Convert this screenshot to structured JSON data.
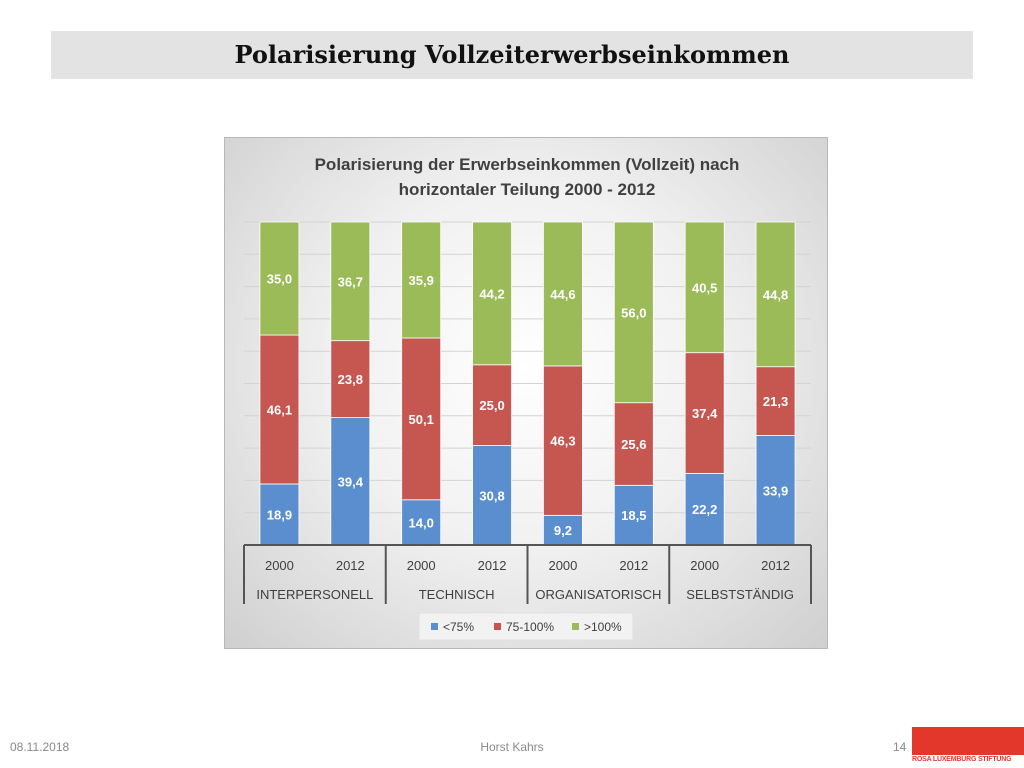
{
  "slide": {
    "title": "Polarisierung Vollzeiterwerbseinkommen",
    "footer_date": "08.11.2018",
    "footer_author": "Horst Kahrs",
    "page_number": "14",
    "logo_text": "ROSA LUXEMBURG STIFTUNG"
  },
  "chart_data": {
    "type": "bar",
    "stacked": true,
    "percent_stacked": true,
    "title": "Polarisierung der Erwerbseinkommen  (Vollzeit) nach horizontaler Teilung 2000 - 2012",
    "title_lines": [
      "Polarisierung der Erwerbseinkommen  (Vollzeit) nach",
      "horizontaler Teilung 2000 - 2012"
    ],
    "categories": [
      "2000",
      "2012",
      "2000",
      "2012",
      "2000",
      "2012",
      "2000",
      "2012"
    ],
    "groups": [
      "INTERPERSONELL",
      "TECHNISCH",
      "ORGANISATORISCH",
      "SELBSTSTÄNDIG"
    ],
    "series": [
      {
        "name": "<75%",
        "color": "#5b8ecf",
        "values": [
          18.9,
          39.4,
          14.0,
          30.8,
          9.2,
          18.5,
          22.2,
          33.9
        ],
        "labels": [
          "18,9",
          "39,4",
          "14,0",
          "30,8",
          "9,2",
          "18,5",
          "22,2",
          "33,9"
        ]
      },
      {
        "name": "75-100%",
        "color": "#c65650",
        "values": [
          46.1,
          23.8,
          50.1,
          25.0,
          46.3,
          25.6,
          37.4,
          21.3
        ],
        "labels": [
          "46,1",
          "23,8",
          "50,1",
          "25,0",
          "46,3",
          "25,6",
          "37,4",
          "21,3"
        ]
      },
      {
        "name": ">100%",
        "color": "#9bbb59",
        "values": [
          35.0,
          36.7,
          35.9,
          44.2,
          44.6,
          56.0,
          40.5,
          44.8
        ],
        "labels": [
          "35,0",
          "36,7",
          "35,9",
          "44,2",
          "44,6",
          "56,0",
          "40,5",
          "44,8"
        ]
      }
    ],
    "legend_position": "bottom",
    "grid": true
  }
}
